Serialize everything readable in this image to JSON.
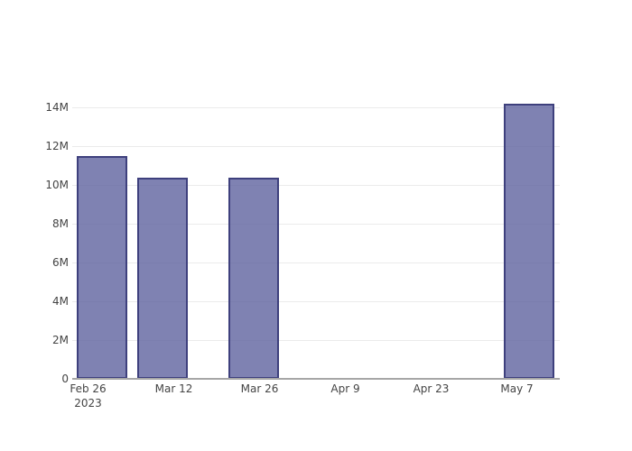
{
  "chart_data": {
    "type": "bar",
    "title": "",
    "xlabel": "",
    "ylabel": "",
    "grid": true,
    "legend": false,
    "x_axis": {
      "tick_labels": [
        "Feb 26",
        "Mar 12",
        "Mar 26",
        "Apr 9",
        "Apr 23",
        "May 7"
      ],
      "tick_sublabels": [
        "2023",
        "",
        "",
        "",
        "",
        ""
      ],
      "tick_day_offsets": [
        0,
        14,
        28,
        42,
        56,
        70
      ],
      "start_label": "Feb 26, 2023",
      "end_label": "May 7, 2023"
    },
    "y_axis": {
      "tick_labels": [
        "0",
        "2M",
        "4M",
        "6M",
        "8M",
        "10M",
        "12M",
        "14M"
      ],
      "tick_values_m": [
        0,
        2,
        4,
        6,
        8,
        10,
        12,
        14
      ],
      "ylim_m": [
        0,
        14.9
      ]
    },
    "bars": [
      {
        "date": "Feb 28, 2023",
        "day_offset": 2.3,
        "value": 11500000,
        "value_m": 11.5,
        "label": "11.5M"
      },
      {
        "date": "Mar 10, 2023",
        "day_offset": 12.2,
        "value": 10400000,
        "value_m": 10.4,
        "label": "10.4M"
      },
      {
        "date": "Mar 25, 2023",
        "day_offset": 27.1,
        "value": 10400000,
        "value_m": 10.4,
        "label": "10.4M"
      },
      {
        "date": "May 9, 2023",
        "day_offset": 72.0,
        "value": 14200000,
        "value_m": 14.2,
        "label": "14.2M"
      }
    ],
    "colors": {
      "bar_fill": "rgba(95,99,159,0.8)",
      "bar_fill_flat": "#7f82b2",
      "bar_border": "#3e407d",
      "grid": "#ebebeb",
      "axis_line": "#a6a6a6",
      "tick_text": "#444444",
      "background": "#ffffff"
    }
  }
}
